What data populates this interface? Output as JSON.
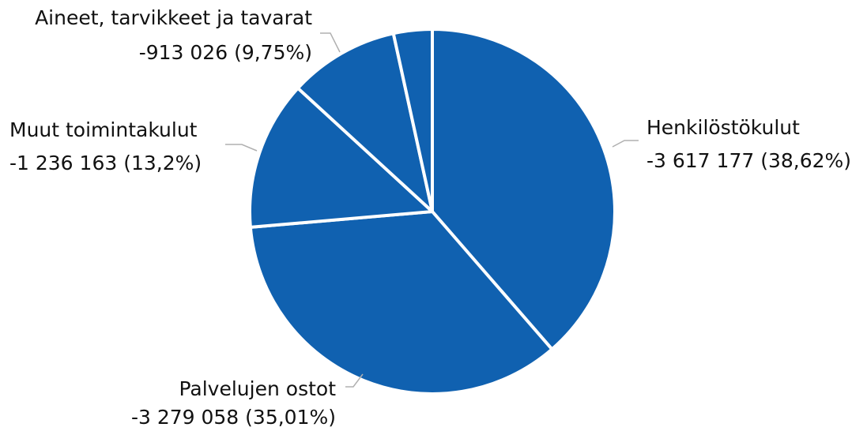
{
  "chart_data": {
    "type": "pie",
    "categories": [
      "Henkilöstökulut",
      "Palvelujen ostot",
      "Muut toimintakulut",
      "Aineet, tarvikkeet ja tavarat",
      null
    ],
    "values": [
      38.62,
      35.01,
      13.2,
      9.75,
      3.42
    ],
    "value_labels": [
      "-3 617 177 (38,62%)",
      "-3 279 058 (35,01%)",
      "-1 236 163 (13,2%)",
      "-913 026 (9,75%)",
      null
    ],
    "color": "#1061b0"
  }
}
